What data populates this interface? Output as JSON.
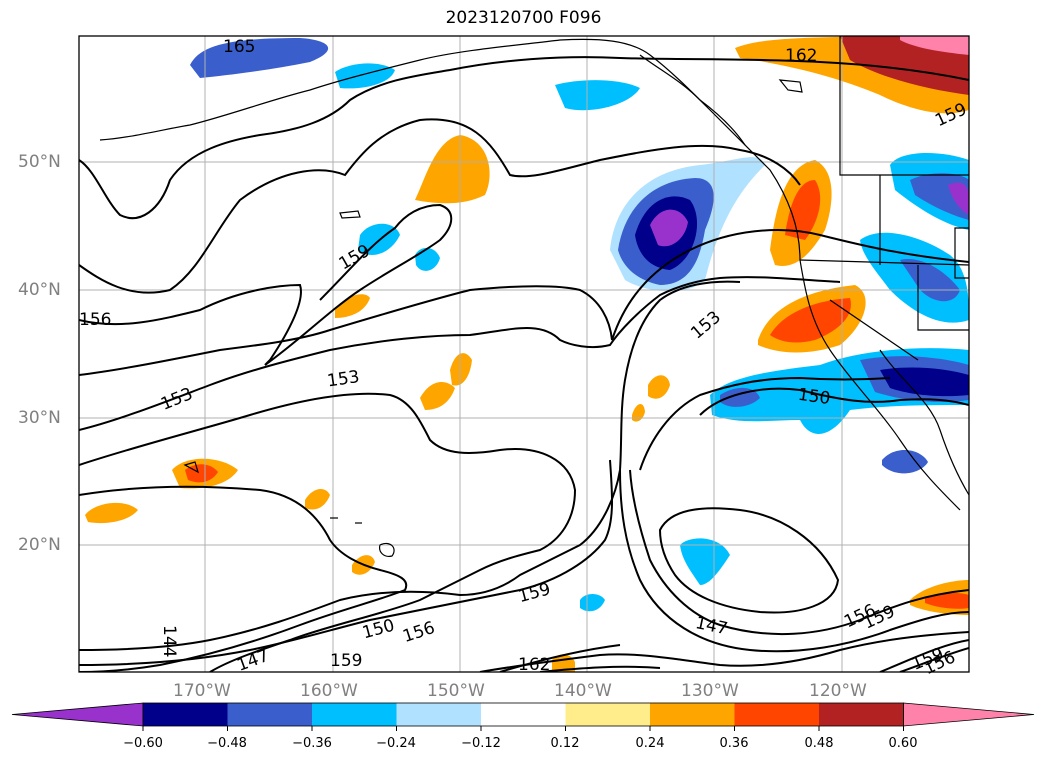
{
  "map": {
    "title": "2023120700 F096",
    "lat_labels": [
      "50°N",
      "40°N",
      "30°N",
      "20°N"
    ],
    "lon_labels": [
      "170°W",
      "160°W",
      "150°W",
      "140°W",
      "130°W",
      "120°W"
    ],
    "contour_labels": [
      "165",
      "162",
      "159",
      "159",
      "156",
      "153",
      "153",
      "153",
      "150",
      "150",
      "147",
      "147",
      "144",
      "156",
      "159",
      "159",
      "162",
      "159",
      "156",
      "159",
      "156"
    ],
    "colorbar": {
      "ticks": [
        "−0.60",
        "−0.48",
        "−0.36",
        "−0.24",
        "−0.12",
        "0.12",
        "0.24",
        "0.36",
        "0.48",
        "0.60"
      ],
      "colors": [
        "#9932cc",
        "#00008b",
        "#3a5fcd",
        "#00bfff",
        "#b0e2ff",
        "#ffffff",
        "#ffec8b",
        "#ffa500",
        "#ff4500",
        "#b22222",
        "#ff82ab"
      ]
    }
  }
}
